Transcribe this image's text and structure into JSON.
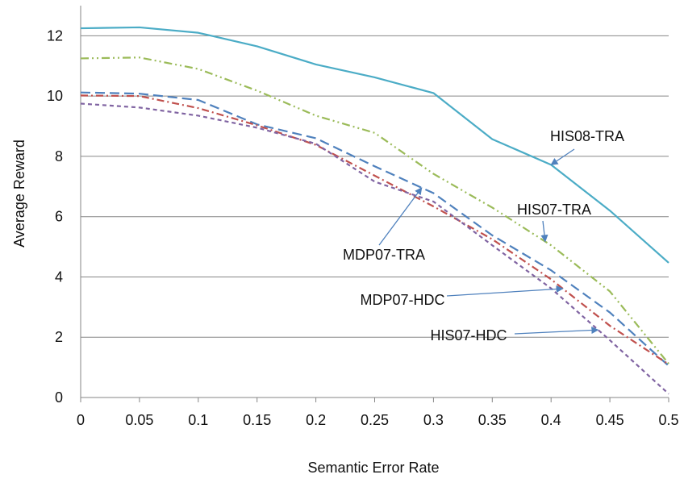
{
  "chart_data": {
    "type": "line",
    "title": "",
    "xlabel": "Semantic Error Rate",
    "ylabel": "Average Reward",
    "xlim": [
      0,
      0.5
    ],
    "ylim": [
      0,
      13
    ],
    "x_ticks": [
      "0",
      "0.05",
      "0.1",
      "0.15",
      "0.2",
      "0.25",
      "0.3",
      "0.35",
      "0.4",
      "0.45",
      "0.5"
    ],
    "y_ticks": [
      "0",
      "2",
      "4",
      "6",
      "8",
      "10",
      "12"
    ],
    "grid": "horizontal",
    "x": [
      0,
      0.05,
      0.1,
      0.15,
      0.2,
      0.25,
      0.3,
      0.35,
      0.4,
      0.45,
      0.5
    ],
    "series": [
      {
        "name": "HIS08-TRA",
        "color": "#4bacc6",
        "dash": "solid",
        "values": [
          12.25,
          12.28,
          12.1,
          11.65,
          11.05,
          10.62,
          10.1,
          8.57,
          7.72,
          6.2,
          4.47
        ]
      },
      {
        "name": "HIS07-TRA",
        "color": "#9bbb59",
        "dash": "dash-dot-dot",
        "values": [
          11.25,
          11.28,
          10.9,
          10.18,
          9.35,
          8.78,
          7.42,
          6.3,
          5.05,
          3.52,
          1.12
        ]
      },
      {
        "name": "MDP07-TRA",
        "color": "#4f81bd",
        "dash": "long-dash",
        "values": [
          10.12,
          10.08,
          9.87,
          9.06,
          8.6,
          7.67,
          6.78,
          5.38,
          4.22,
          2.82,
          1.05
        ]
      },
      {
        "name": "MDP07-HDC",
        "color": "#c0504d",
        "dash": "dash-dot",
        "values": [
          10.02,
          10.0,
          9.6,
          9.03,
          8.38,
          7.36,
          6.34,
          5.25,
          3.92,
          2.38,
          1.1
        ]
      },
      {
        "name": "HIS07-HDC",
        "color": "#8064a2",
        "dash": "short-dash",
        "values": [
          9.75,
          9.62,
          9.35,
          8.95,
          8.42,
          7.16,
          6.5,
          5.05,
          3.62,
          1.9,
          0.12
        ]
      }
    ],
    "annotations": [
      {
        "text": "HIS08-TRA",
        "series": "HIS08-TRA",
        "arrow_to_x": 0.4
      },
      {
        "text": "HIS07-TRA",
        "series": "HIS07-TRA",
        "arrow_to_x": 0.395
      },
      {
        "text": "MDP07-TRA",
        "series": "MDP07-TRA",
        "arrow_to_x": 0.29
      },
      {
        "text": "MDP07-HDC",
        "series": "MDP07-HDC",
        "arrow_to_x": 0.41
      },
      {
        "text": "HIS07-HDC",
        "series": "HIS07-HDC",
        "arrow_to_x": 0.44
      }
    ]
  }
}
